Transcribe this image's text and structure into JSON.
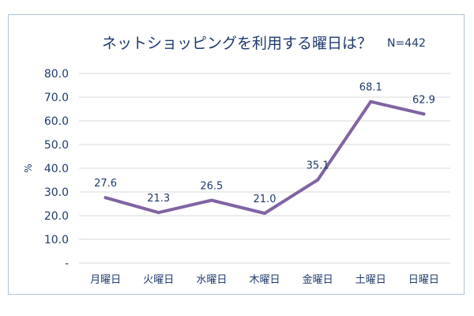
{
  "chart_data": {
    "type": "line",
    "title": "ネットショッピングを利用する曜日は？",
    "note": "N=442",
    "ylabel": "%",
    "xlabel": "",
    "ylim": [
      0,
      80
    ],
    "y_ticks": [
      "-",
      "10.0",
      "20.0",
      "30.0",
      "40.0",
      "50.0",
      "60.0",
      "70.0",
      "80.0"
    ],
    "grid": "horizontal",
    "categories": [
      "月曜日",
      "火曜日",
      "水曜日",
      "木曜日",
      "金曜日",
      "土曜日",
      "日曜日"
    ],
    "series": [
      {
        "values": [
          27.6,
          21.3,
          26.5,
          21.0,
          35.1,
          68.1,
          62.9
        ],
        "labels": [
          "27.6",
          "21.3",
          "26.5",
          "21.0",
          "35.1",
          "68.1",
          "62.9"
        ],
        "color": "#8064a2"
      }
    ],
    "colors": {
      "text": "#1f3a6d",
      "grid": "#d9d9d9",
      "frame": "#aec3dc"
    }
  }
}
